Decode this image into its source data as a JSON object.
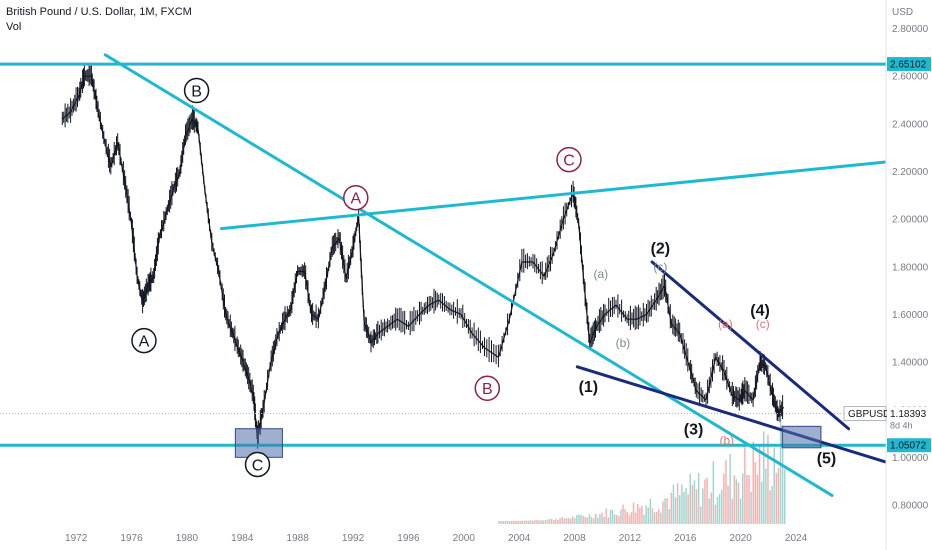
{
  "header": {
    "title": "British Pound / U.S. Dollar, 1M, FXCM",
    "indicator": "Vol"
  },
  "chart_data": {
    "type": "line",
    "symbol": "GBPUSD",
    "currency": "USD",
    "x_ticks": [
      "1972",
      "1976",
      "1980",
      "1984",
      "1988",
      "1992",
      "1996",
      "2000",
      "2004",
      "2008",
      "2012",
      "2016",
      "2020",
      "2024"
    ],
    "y_ticks": [
      "2.80000",
      "2.60000",
      "2.40000",
      "2.20000",
      "2.00000",
      "1.80000",
      "1.60000",
      "1.40000",
      "1.20000",
      "1.00000",
      "0.80000"
    ],
    "ylim": [
      0.72,
      2.92
    ],
    "xlim": [
      1966.5,
      2030.5
    ],
    "price": {
      "x": [
        1971.0,
        1971.6,
        1972.2,
        1972.6,
        1973.1,
        1973.5,
        1974.0,
        1974.5,
        1975.0,
        1975.5,
        1976.0,
        1976.4,
        1976.8,
        1977.2,
        1977.6,
        1978.0,
        1978.5,
        1979.0,
        1979.5,
        1979.9,
        1980.4,
        1980.8,
        1981.3,
        1981.8,
        1982.3,
        1982.8,
        1983.3,
        1983.8,
        1984.3,
        1984.8,
        1985.1,
        1985.5,
        1986.0,
        1986.5,
        1987.0,
        1987.5,
        1988.0,
        1988.5,
        1989.0,
        1989.5,
        1990.0,
        1990.5,
        1991.0,
        1991.5,
        1992.0,
        1992.4,
        1992.8,
        1993.3,
        1993.8,
        1994.5,
        1995.2,
        1996.0,
        1996.8,
        1997.5,
        1998.2,
        1999.0,
        1999.8,
        2000.6,
        2001.5,
        2002.5,
        2003.3,
        2004.2,
        2005.0,
        2005.8,
        2006.5,
        2007.2,
        2007.9,
        2008.3,
        2008.7,
        2009.1,
        2009.6,
        2010.2,
        2011.0,
        2011.8,
        2012.5,
        2013.2,
        2013.9,
        2014.5,
        2015.0,
        2015.6,
        2016.3,
        2016.8,
        2017.5,
        2018.2,
        2018.8,
        2019.4,
        2019.9,
        2020.3,
        2020.9,
        2021.4,
        2021.8,
        2022.3,
        2022.7,
        2023.1
      ],
      "y": [
        2.42,
        2.45,
        2.52,
        2.6,
        2.6,
        2.48,
        2.34,
        2.22,
        2.32,
        2.16,
        1.98,
        1.76,
        1.65,
        1.72,
        1.76,
        1.92,
        2.02,
        2.12,
        2.2,
        2.35,
        2.42,
        2.38,
        2.12,
        1.9,
        1.78,
        1.6,
        1.52,
        1.44,
        1.36,
        1.26,
        1.08,
        1.2,
        1.38,
        1.5,
        1.57,
        1.62,
        1.78,
        1.78,
        1.6,
        1.58,
        1.72,
        1.88,
        1.92,
        1.75,
        1.88,
        2.01,
        1.57,
        1.48,
        1.52,
        1.55,
        1.58,
        1.55,
        1.6,
        1.64,
        1.66,
        1.62,
        1.6,
        1.52,
        1.46,
        1.42,
        1.58,
        1.82,
        1.82,
        1.76,
        1.86,
        2.0,
        2.11,
        1.98,
        1.72,
        1.48,
        1.55,
        1.6,
        1.64,
        1.58,
        1.58,
        1.6,
        1.66,
        1.72,
        1.56,
        1.52,
        1.38,
        1.28,
        1.24,
        1.42,
        1.36,
        1.26,
        1.24,
        1.28,
        1.24,
        1.4,
        1.38,
        1.26,
        1.18,
        1.21
      ]
    },
    "levels": [
      {
        "price": 2.65102,
        "label": "2.65102"
      },
      {
        "price": 1.05072,
        "label": "1.05072"
      }
    ],
    "current": {
      "price": 1.18393,
      "label": "1.18393",
      "symbol": "GBPUSD",
      "countdown": "8d 4h"
    },
    "trendlines": [
      {
        "color": "#1fb8d0",
        "from": [
          1974.1,
          2.69
        ],
        "to": [
          2026.6,
          0.84
        ]
      },
      {
        "color": "#1fb8d0",
        "from": [
          1982.5,
          1.96
        ],
        "to": [
          2030.5,
          2.24
        ]
      },
      {
        "color": "#1b2a7a",
        "from": [
          2013.6,
          1.82
        ],
        "to": [
          2027.8,
          1.12
        ]
      },
      {
        "color": "#1b2a7a",
        "from": [
          2008.2,
          1.38
        ],
        "to": [
          2030.5,
          0.98
        ]
      }
    ],
    "zones": [
      {
        "x": [
          1983.5,
          1986.9
        ],
        "y": [
          1.0,
          1.12
        ]
      },
      {
        "x": [
          2023.0,
          2025.8
        ],
        "y": [
          1.04,
          1.13
        ]
      }
    ],
    "wave_labels": [
      {
        "text": "A",
        "x": 1976.9,
        "y": 1.49,
        "circle": true,
        "color": "#131722"
      },
      {
        "text": "B",
        "x": 1980.7,
        "y": 2.54,
        "circle": true,
        "color": "#131722"
      },
      {
        "text": "C",
        "x": 1985.1,
        "y": 0.97,
        "circle": true,
        "color": "#131722"
      },
      {
        "text": "A",
        "x": 1992.2,
        "y": 2.09,
        "circle": true,
        "color": "#8b2252"
      },
      {
        "text": "B",
        "x": 2001.7,
        "y": 1.29,
        "circle": true,
        "color": "#8b2252"
      },
      {
        "text": "C",
        "x": 2007.6,
        "y": 2.25,
        "circle": true,
        "color": "#8b2252"
      },
      {
        "text": "(a)",
        "x": 2009.9,
        "y": 1.77,
        "circle": false,
        "color": "#7a8a8e"
      },
      {
        "text": "(b)",
        "x": 2011.5,
        "y": 1.48,
        "circle": false,
        "color": "#7a8a8e"
      },
      {
        "text": "(c)",
        "x": 2014.2,
        "y": 1.8,
        "circle": false,
        "color": "#7a8a8e"
      },
      {
        "text": "(a)",
        "x": 2018.9,
        "y": 1.56,
        "circle": false,
        "color": "#e57373"
      },
      {
        "text": "(b)",
        "x": 2019.0,
        "y": 1.07,
        "circle": false,
        "color": "#e57373"
      },
      {
        "text": "(c)",
        "x": 2021.6,
        "y": 1.56,
        "circle": false,
        "color": "#e57373"
      },
      {
        "text": "(1)",
        "x": 2009.0,
        "y": 1.3,
        "circle": false,
        "color": "#131722"
      },
      {
        "text": "(2)",
        "x": 2014.2,
        "y": 1.88,
        "circle": false,
        "color": "#131722"
      },
      {
        "text": "(3)",
        "x": 2016.6,
        "y": 1.12,
        "circle": false,
        "color": "#131722"
      },
      {
        "text": "(4)",
        "x": 2021.4,
        "y": 1.62,
        "circle": false,
        "color": "#131722"
      },
      {
        "text": "(5)",
        "x": 2026.2,
        "y": 1.0,
        "circle": false,
        "color": "#131722"
      }
    ]
  }
}
